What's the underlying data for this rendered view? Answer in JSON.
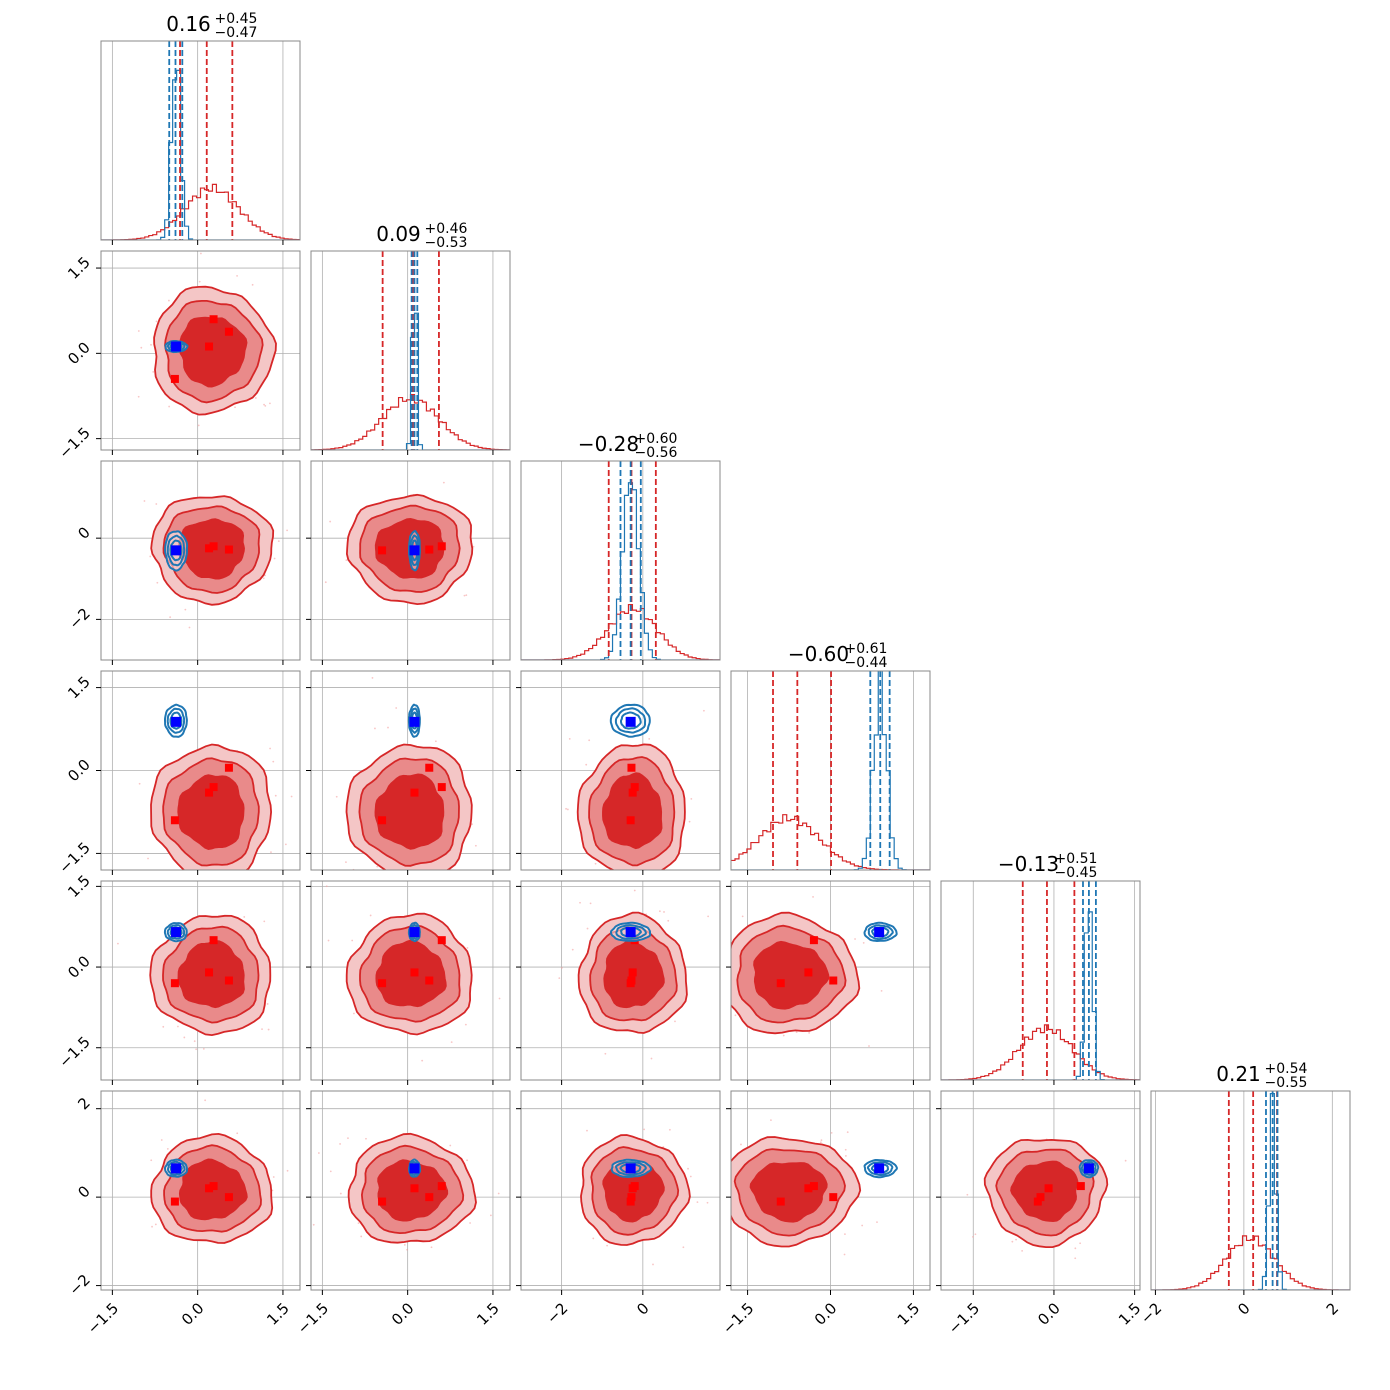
{
  "chart_data": {
    "type": "corner",
    "n_params": 6,
    "colors": {
      "red": "#d62728",
      "red_fill_light": "#f4c6c6",
      "red_fill_mid": "#e98a8a",
      "blue": "#1f77b4",
      "truth_red": "#ff0000",
      "truth_blue": "#0000ff",
      "grid": "#b0b0b0"
    },
    "titles": [
      {
        "median": "0.16",
        "plus": "+0.45",
        "minus": "−0.47"
      },
      {
        "median": "0.09",
        "plus": "+0.46",
        "minus": "−0.53"
      },
      {
        "median": "−0.28",
        "plus": "+0.60",
        "minus": "−0.56"
      },
      {
        "median": "−0.60",
        "plus": "+0.61",
        "minus": "−0.44"
      },
      {
        "median": "−0.13",
        "plus": "+0.51",
        "minus": "−0.45"
      },
      {
        "median": "0.21",
        "plus": "+0.54",
        "minus": "−0.55"
      }
    ],
    "ranges": [
      [
        -1.7,
        1.8
      ],
      [
        -1.7,
        1.8
      ],
      [
        -3.0,
        1.9
      ],
      [
        -1.8,
        1.8
      ],
      [
        -2.1,
        1.6
      ],
      [
        -2.1,
        2.4
      ]
    ],
    "ticks": [
      [
        "−1.5",
        "0.0",
        "1.5"
      ],
      [
        "−1.5",
        "0.0",
        "1.5"
      ],
      [
        "−2",
        "0"
      ],
      [
        "−1.5",
        "0.0",
        "1.5"
      ],
      [
        "−1.5",
        "0.0",
        "1.5"
      ],
      [
        "−2",
        "0",
        "2"
      ]
    ],
    "tick_values": [
      [
        -1.5,
        0.0,
        1.5
      ],
      [
        -1.5,
        0.0,
        1.5
      ],
      [
        -2,
        0
      ],
      [
        -1.5,
        0.0,
        1.5
      ],
      [
        -1.5,
        0.0,
        1.5
      ],
      [
        -2,
        0,
        2
      ]
    ],
    "red_posterior": {
      "mean": [
        0.25,
        0.05,
        -0.25,
        -0.75,
        -0.15,
        0.15
      ],
      "sd": [
        0.48,
        0.5,
        0.6,
        0.55,
        0.5,
        0.55
      ],
      "quantiles": [
        [
          -0.31,
          0.16,
          0.61
        ],
        [
          -0.44,
          0.09,
          0.55
        ],
        [
          -0.84,
          -0.28,
          0.32
        ],
        [
          -1.04,
          -0.6,
          0.01
        ],
        [
          -0.58,
          -0.13,
          0.38
        ],
        [
          -0.34,
          0.21,
          0.75
        ]
      ]
    },
    "blue_posterior": {
      "mean": [
        -0.38,
        0.12,
        -0.3,
        0.9,
        0.65,
        0.65
      ],
      "sd": [
        0.08,
        0.04,
        0.2,
        0.12,
        0.07,
        0.08
      ],
      "quantiles": [
        [
          -0.5,
          -0.39,
          -0.27
        ],
        [
          0.07,
          0.12,
          0.17
        ],
        [
          -0.55,
          -0.3,
          -0.05
        ],
        [
          0.72,
          0.9,
          1.07
        ],
        [
          0.54,
          0.65,
          0.78
        ],
        [
          0.5,
          0.65,
          0.76
        ]
      ]
    },
    "blue_truth": [
      -0.38,
      0.12,
      -0.3,
      0.88,
      0.65,
      0.65
    ],
    "red_points": [
      [
        0.2,
        -0.4,
        0.28,
        0.55
      ],
      [
        0.12,
        -0.45,
        0.6,
        0.38
      ],
      [
        -0.25,
        -0.3,
        -0.2,
        -0.28
      ],
      [
        -0.4,
        -0.9,
        -0.3,
        0.05
      ],
      [
        -0.1,
        -0.3,
        0.5,
        -0.25
      ],
      [
        0.2,
        -0.1,
        0.25,
        0.0
      ]
    ],
    "grid": true
  }
}
